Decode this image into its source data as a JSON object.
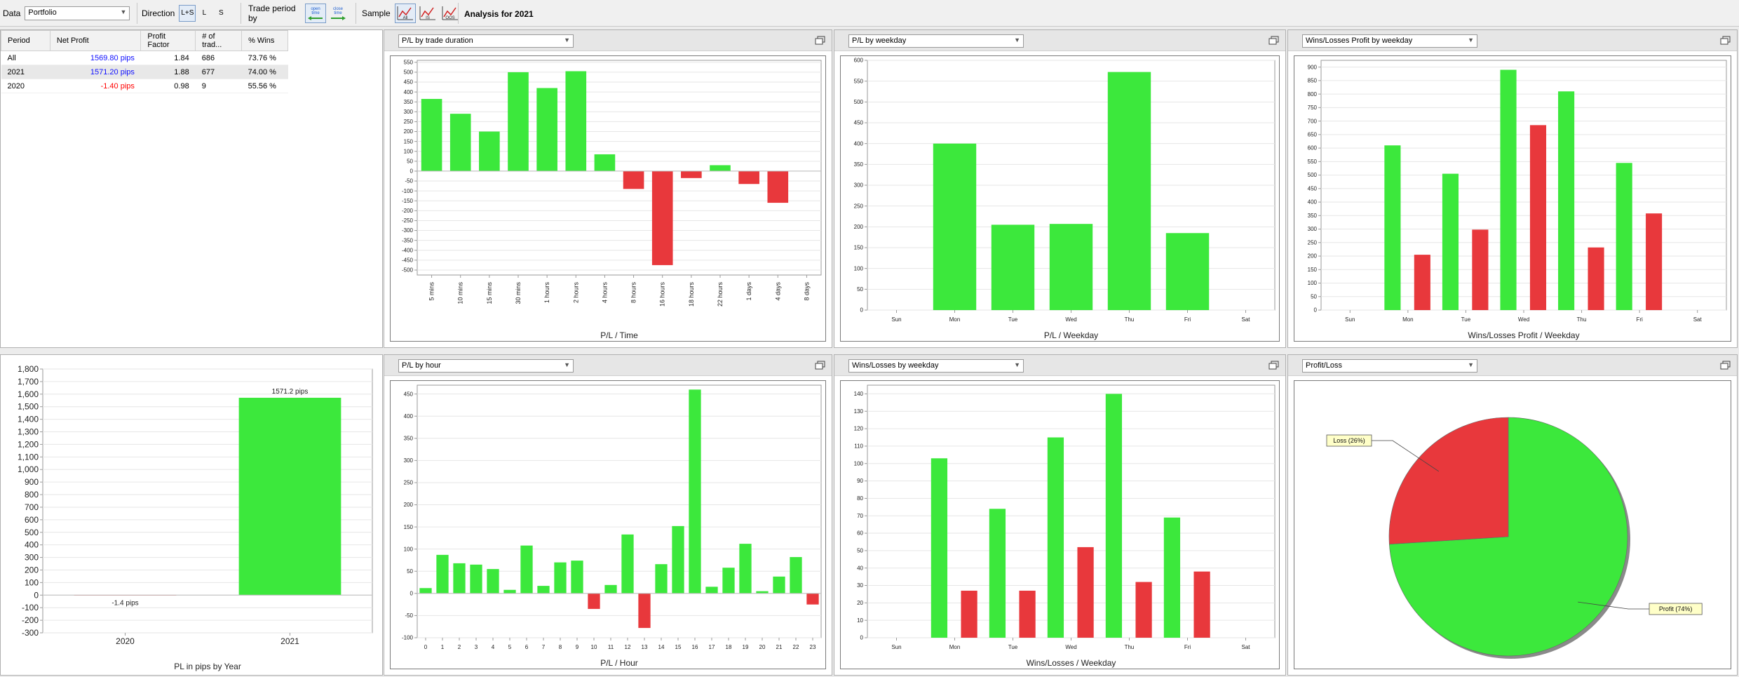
{
  "toolbar": {
    "data_label": "Data",
    "data_value": "Portfolio",
    "direction_label": "Direction",
    "direction_options": [
      "L+S",
      "L",
      "S"
    ],
    "trade_period_label": "Trade period by",
    "open_time_label": "open time",
    "close_time_label": "close time",
    "sample_label": "Sample",
    "analysis_title": "Analysis for 2021"
  },
  "table": {
    "headers": [
      "Period",
      "Net Profit",
      "Profit Factor",
      "# of trad...",
      "% Wins"
    ],
    "rows": [
      {
        "period": "All",
        "net_profit": "1569.80 pips",
        "profit_factor": "1.84",
        "trades": "686",
        "wins": "73.76 %"
      },
      {
        "period": "2021",
        "net_profit": "1571.20 pips",
        "profit_factor": "1.88",
        "trades": "677",
        "wins": "74.00 %"
      },
      {
        "period": "2020",
        "net_profit": "-1.40 pips",
        "profit_factor": "0.98",
        "trades": "9",
        "wins": "55.56 %"
      }
    ]
  },
  "colors": {
    "green": "#3ce83c",
    "red": "#e8383c",
    "panel_bg": "#ffffff"
  },
  "chart_data": [
    {
      "id": "duration",
      "type": "bar",
      "dropdown": "P/L by trade duration",
      "caption": "P/L / Time",
      "categories": [
        "5 mins",
        "10 mins",
        "15 mins",
        "30 mins",
        "1 hours",
        "2 hours",
        "4 hours",
        "8 hours",
        "16 hours",
        "18 hours",
        "22 hours",
        "1 days",
        "4 days",
        "8 days"
      ],
      "values": [
        365,
        290,
        200,
        500,
        420,
        505,
        85,
        -90,
        -475,
        -35,
        30,
        -65,
        -160,
        0
      ],
      "ylim": [
        -525,
        560
      ],
      "yticks": [
        -500,
        -450,
        -400,
        -350,
        -300,
        -250,
        -200,
        -150,
        -100,
        -50,
        0,
        50,
        100,
        150,
        200,
        250,
        300,
        350,
        400,
        450,
        500,
        550
      ],
      "rotate_labels": true
    },
    {
      "id": "weekday",
      "type": "bar",
      "dropdown": "P/L by weekday",
      "caption": "P/L / Weekday",
      "categories": [
        "Sun",
        "Mon",
        "Tue",
        "Wed",
        "Thu",
        "Fri",
        "Sat"
      ],
      "values": [
        0,
        400,
        205,
        207,
        572,
        185,
        0
      ],
      "ylim": [
        0,
        600
      ],
      "yticks": [
        0,
        50,
        100,
        150,
        200,
        250,
        300,
        350,
        400,
        450,
        500,
        550,
        600
      ]
    },
    {
      "id": "wl_profit",
      "type": "bar",
      "dropdown": "Wins/Losses Profit by weekday",
      "caption": "Wins/Losses Profit / Weekday",
      "categories": [
        "Sun",
        "Mon",
        "Tue",
        "Wed",
        "Thu",
        "Fri",
        "Sat"
      ],
      "series": [
        {
          "values": [
            0,
            610,
            505,
            890,
            810,
            545,
            0
          ]
        },
        {
          "values": [
            0,
            205,
            298,
            685,
            232,
            358,
            0
          ]
        }
      ],
      "ylim": [
        0,
        925
      ],
      "yticks": [
        0,
        50,
        100,
        150,
        200,
        250,
        300,
        350,
        400,
        450,
        500,
        550,
        600,
        650,
        700,
        750,
        800,
        850,
        900
      ]
    },
    {
      "id": "year",
      "type": "bar",
      "caption": "PL in pips by Year",
      "categories": [
        "2020",
        "2021"
      ],
      "values": [
        -1.4,
        1571.2
      ],
      "data_labels": [
        "-1.4 pips",
        "1571.2 pips"
      ],
      "ylim": [
        -300,
        1800
      ],
      "yticks": [
        -300,
        -200,
        -100,
        0,
        100,
        200,
        300,
        400,
        500,
        600,
        700,
        800,
        900,
        1000,
        1100,
        1200,
        1300,
        1400,
        1500,
        1600,
        1700,
        1800
      ],
      "ytick_labels": [
        "-300",
        "-200",
        "-100",
        "0",
        "100",
        "200",
        "300",
        "400",
        "500",
        "600",
        "700",
        "800",
        "900",
        "1,000",
        "1,100",
        "1,200",
        "1,300",
        "1,400",
        "1,500",
        "1,600",
        "1,700",
        "1,800"
      ]
    },
    {
      "id": "hour",
      "type": "bar",
      "dropdown": "P/L by hour",
      "caption": "P/L / Hour",
      "categories": [
        "0",
        "1",
        "2",
        "3",
        "4",
        "5",
        "6",
        "7",
        "8",
        "9",
        "10",
        "11",
        "12",
        "13",
        "14",
        "15",
        "16",
        "17",
        "18",
        "19",
        "20",
        "21",
        "22",
        "23"
      ],
      "values": [
        12,
        87,
        68,
        65,
        55,
        8,
        108,
        17,
        70,
        74,
        -35,
        19,
        133,
        -78,
        66,
        152,
        460,
        15,
        58,
        112,
        5,
        38,
        82,
        -25
      ],
      "ylim": [
        -100,
        470
      ],
      "yticks": [
        -100,
        -50,
        0,
        50,
        100,
        150,
        200,
        250,
        300,
        350,
        400,
        450
      ]
    },
    {
      "id": "wl_count",
      "type": "bar",
      "dropdown": "Wins/Losses by weekday",
      "caption": "Wins/Losses / Weekday",
      "categories": [
        "Sun",
        "Mon",
        "Tue",
        "Wed",
        "Thu",
        "Fri",
        "Sat"
      ],
      "series": [
        {
          "values": [
            0,
            103,
            74,
            115,
            140,
            69,
            0
          ]
        },
        {
          "values": [
            0,
            27,
            27,
            52,
            32,
            38,
            0
          ]
        }
      ],
      "ylim": [
        0,
        145
      ],
      "yticks": [
        0,
        10,
        20,
        30,
        40,
        50,
        60,
        70,
        80,
        90,
        100,
        110,
        120,
        130,
        140
      ]
    },
    {
      "id": "pie",
      "type": "pie",
      "dropdown": "Profit/Loss",
      "labels": [
        "Profit (74%)",
        "Loss (26%)"
      ],
      "values": [
        74,
        26
      ]
    }
  ]
}
